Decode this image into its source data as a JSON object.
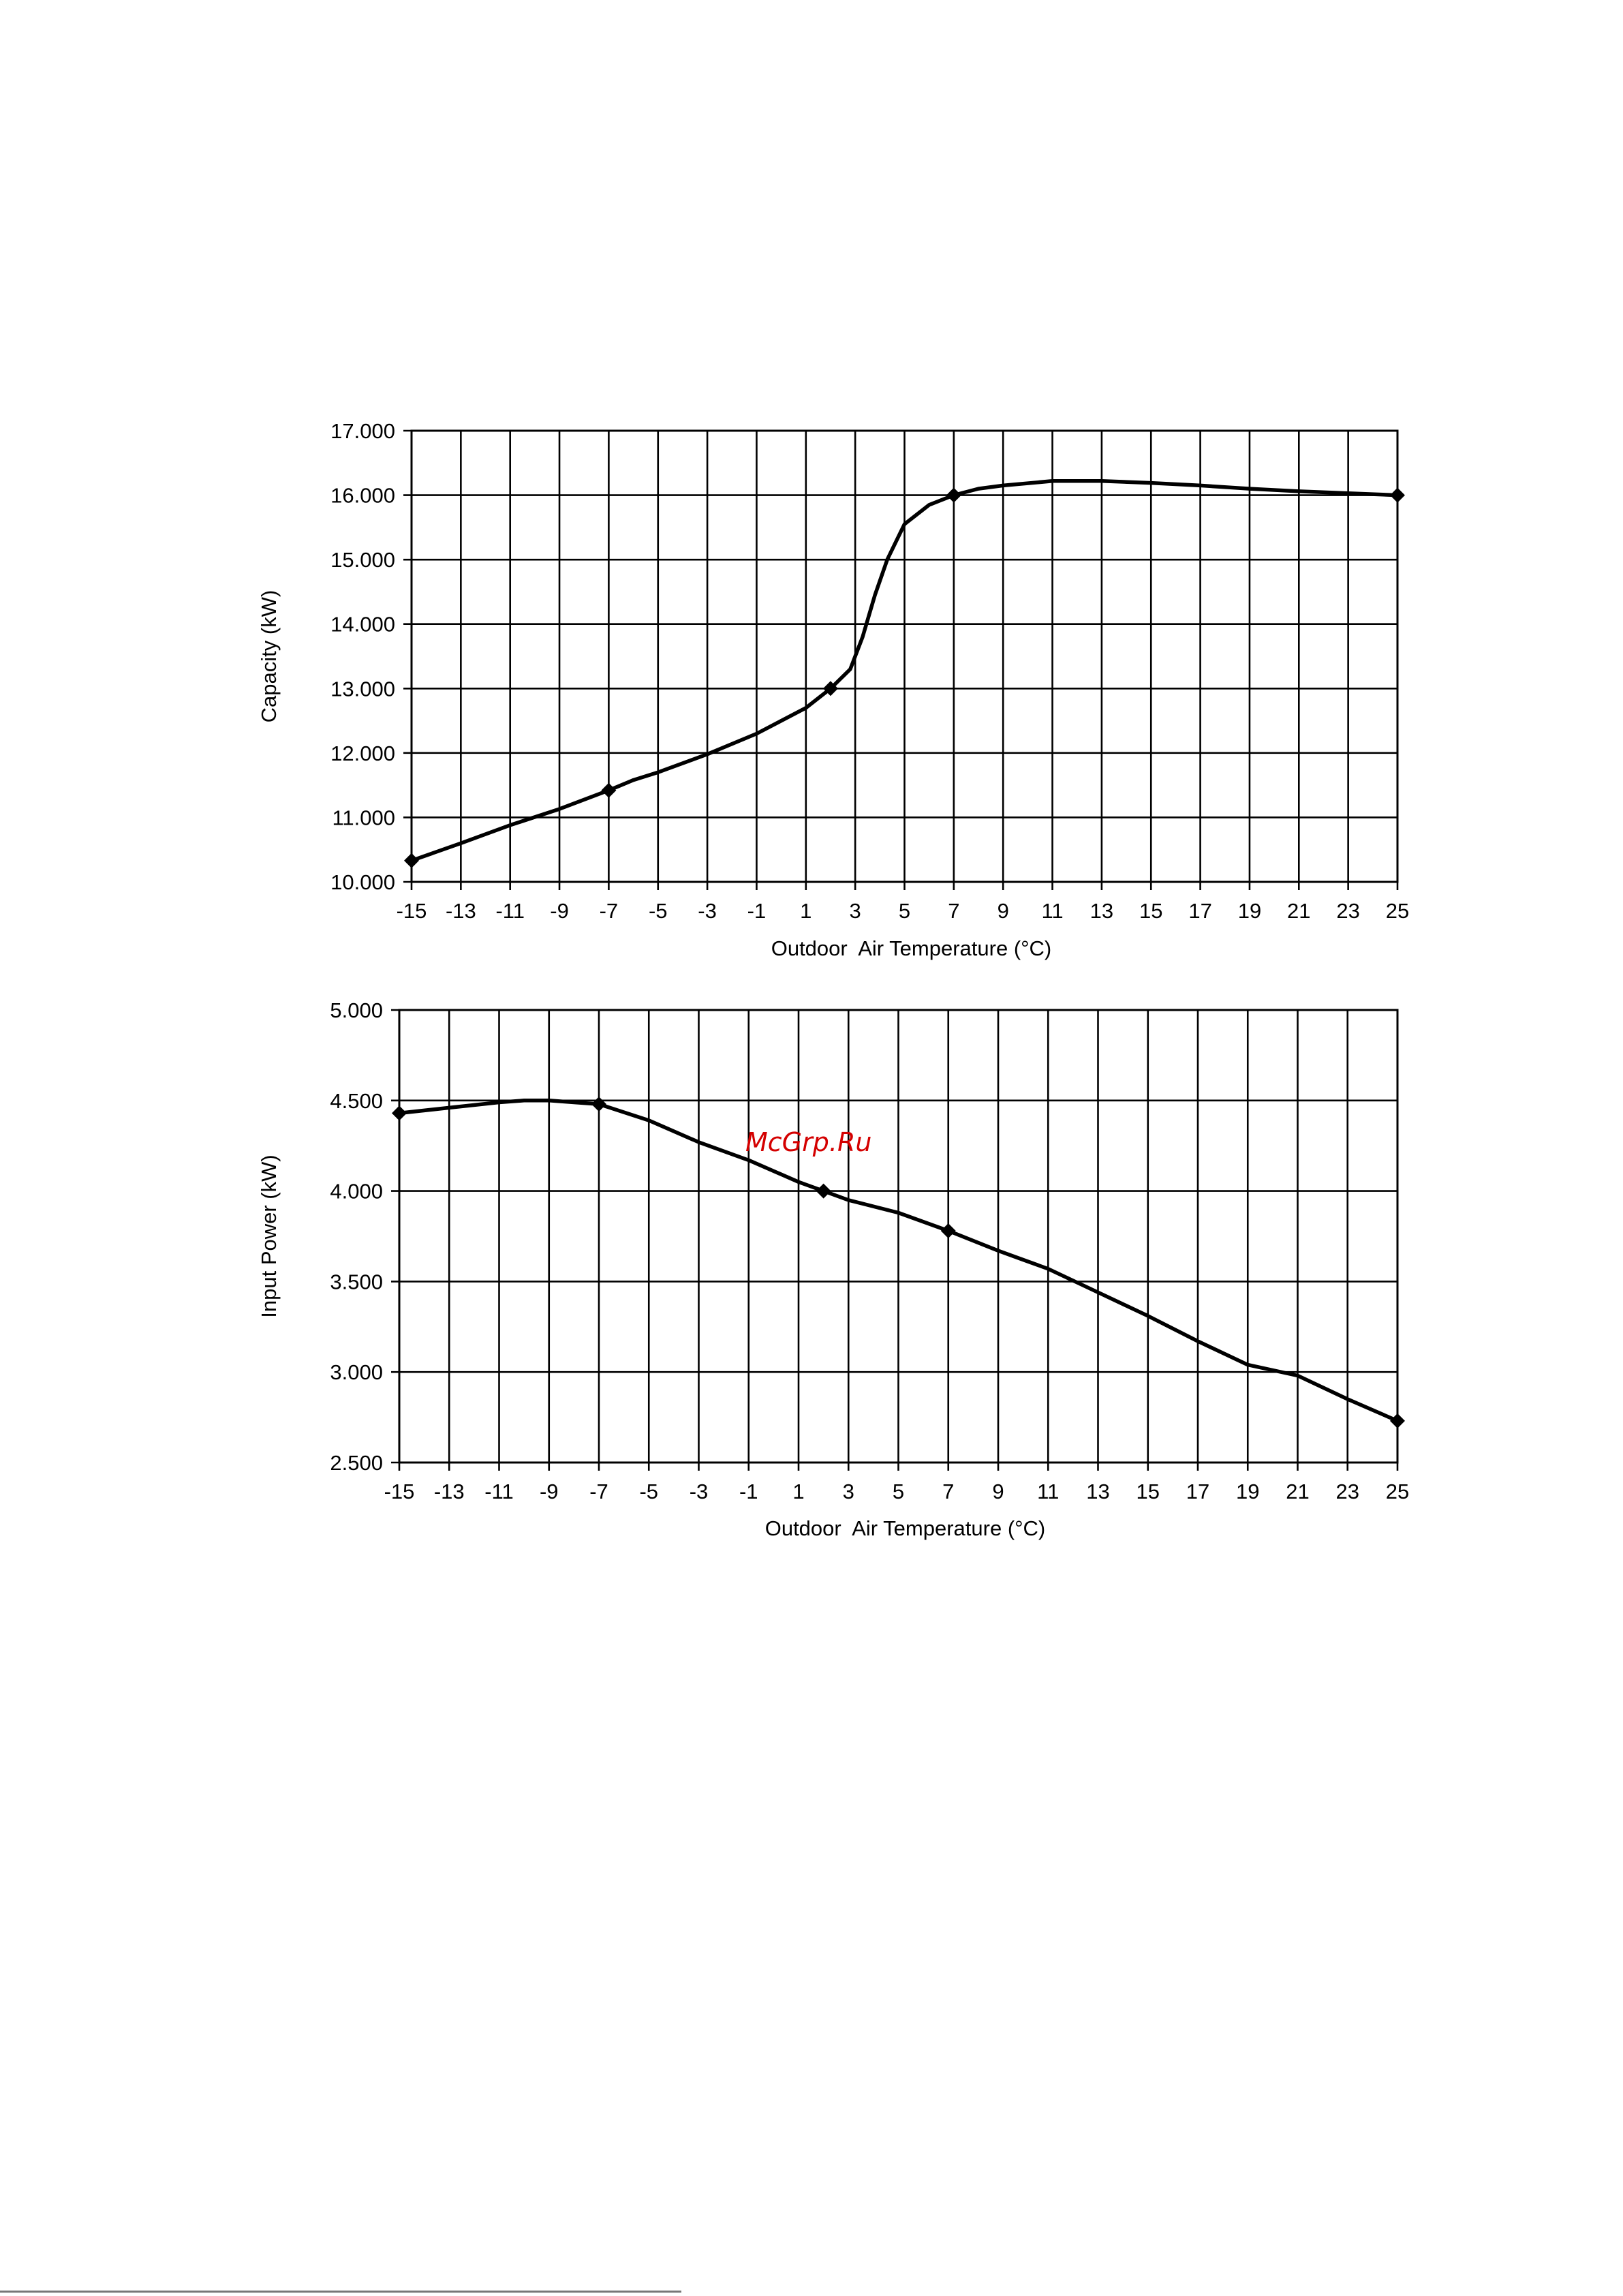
{
  "watermark": "McGrp.Ru",
  "chart_data": [
    {
      "type": "line",
      "xlabel": "Outdoor  Air Temperature (°C)",
      "ylabel": "Capacity (kW)",
      "xlim": [
        -15,
        25
      ],
      "ylim": [
        10,
        17
      ],
      "x_ticks": [
        "-15",
        "-13",
        "-11",
        "-9",
        "-7",
        "-5",
        "-3",
        "-1",
        "1",
        "3",
        "5",
        "7",
        "9",
        "11",
        "13",
        "15",
        "17",
        "19",
        "21",
        "23",
        "25"
      ],
      "y_ticks": [
        "10.000",
        "11.000",
        "12.000",
        "13.000",
        "14.000",
        "15.000",
        "16.000",
        "17.000"
      ],
      "grid": true,
      "series": [
        {
          "x": [
            -15,
            -13,
            -11,
            -9,
            -7,
            -6,
            -5,
            -3,
            -1,
            1,
            2,
            2.8,
            3.3,
            3.8,
            4.3,
            5,
            6,
            7,
            8,
            9,
            11,
            13,
            15,
            17,
            19,
            21,
            23,
            25
          ],
          "y": [
            10.33,
            10.6,
            10.88,
            11.13,
            11.42,
            11.58,
            11.7,
            11.98,
            12.3,
            12.7,
            13.0,
            13.3,
            13.8,
            14.45,
            15.0,
            15.55,
            15.85,
            16.0,
            16.1,
            16.15,
            16.22,
            16.22,
            16.19,
            16.15,
            16.1,
            16.06,
            16.03,
            16.0
          ],
          "markers": [
            [
              -15,
              10.33
            ],
            [
              -7,
              11.42
            ],
            [
              2,
              13.0
            ],
            [
              7,
              16.0
            ],
            [
              25,
              16.0
            ]
          ]
        }
      ]
    },
    {
      "type": "line",
      "xlabel": "Outdoor  Air Temperature (°C)",
      "ylabel": "Input Power (kW)",
      "xlim": [
        -15,
        25
      ],
      "ylim": [
        2.5,
        5.0
      ],
      "x_ticks": [
        "-15",
        "-13",
        "-11",
        "-9",
        "-7",
        "-5",
        "-3",
        "-1",
        "1",
        "3",
        "5",
        "7",
        "9",
        "11",
        "13",
        "15",
        "17",
        "19",
        "21",
        "23",
        "25"
      ],
      "y_ticks": [
        "2.500",
        "3.000",
        "3.500",
        "4.000",
        "4.500",
        "5.000"
      ],
      "grid": true,
      "series": [
        {
          "x": [
            -15,
            -13,
            -11,
            -10,
            -9,
            -8,
            -7,
            -5,
            -3,
            -1,
            1,
            2,
            3,
            5,
            7,
            9,
            10,
            11,
            13,
            15,
            17,
            19,
            21,
            23,
            25
          ],
          "y": [
            4.43,
            4.46,
            4.49,
            4.5,
            4.5,
            4.49,
            4.48,
            4.39,
            4.27,
            4.17,
            4.05,
            4.0,
            3.95,
            3.88,
            3.78,
            3.67,
            3.62,
            3.57,
            3.44,
            3.31,
            3.17,
            3.04,
            2.98,
            2.85,
            2.73
          ],
          "markers": [
            [
              -15,
              4.43
            ],
            [
              -7,
              4.48
            ],
            [
              2,
              4.0
            ],
            [
              7,
              3.78
            ],
            [
              25,
              2.73
            ]
          ]
        }
      ]
    }
  ]
}
